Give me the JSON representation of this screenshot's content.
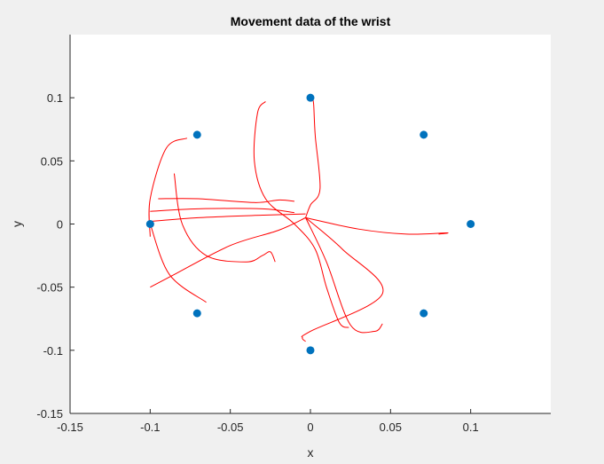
{
  "chart_data": {
    "type": "scatter",
    "title": "Movement data of the wrist",
    "xlabel": "x",
    "ylabel": "y",
    "xlim": [
      -0.15,
      0.15
    ],
    "ylim": [
      -0.15,
      0.15
    ],
    "xticks": [
      -0.15,
      -0.1,
      -0.05,
      0,
      0.05,
      0.1
    ],
    "yticks": [
      -0.15,
      -0.1,
      -0.05,
      0,
      0.05,
      0.1
    ],
    "xtick_labels": [
      "-0.15",
      "-0.1",
      "-0.05",
      "0",
      "0.05",
      "0.1"
    ],
    "ytick_labels": [
      "-0.15",
      "-0.1",
      "-0.05",
      "0",
      "0.05",
      "0.1"
    ],
    "grid": false,
    "legend": "none",
    "colors": {
      "targets": "#0072BD",
      "trajectory": "#FF0000",
      "axes_background": "#FFFFFF",
      "figure_background": "#F0F0F0",
      "axis": "#262626"
    },
    "series": [
      {
        "kind": "scatter",
        "points": [
          [
            0,
            0.1
          ],
          [
            0.0707,
            0.0707
          ],
          [
            0.1,
            0
          ],
          [
            0.0707,
            -0.0707
          ],
          [
            0,
            -0.1
          ],
          [
            -0.0707,
            -0.0707
          ],
          [
            -0.1,
            0
          ],
          [
            -0.0707,
            0.0707
          ]
        ]
      },
      {
        "kind": "line",
        "paths": [
          [
            [
              -0.003,
              0.005
            ],
            [
              0.0,
              0.015
            ],
            [
              0.006,
              0.028
            ],
            [
              0.003,
              0.07
            ],
            [
              0.002,
              0.095
            ],
            [
              0.001,
              0.1
            ]
          ],
          [
            [
              -0.003,
              0.005
            ],
            [
              -0.02,
              -0.005
            ],
            [
              -0.05,
              -0.017
            ],
            [
              -0.085,
              -0.04
            ],
            [
              -0.1,
              -0.05
            ]
          ],
          [
            [
              -0.003,
              0.005
            ],
            [
              0.02,
              -0.02
            ],
            [
              0.045,
              -0.055
            ],
            [
              0.0,
              -0.085
            ],
            [
              -0.005,
              -0.09
            ],
            [
              -0.003,
              -0.093
            ]
          ],
          [
            [
              -0.003,
              0.005
            ],
            [
              0.03,
              -0.004
            ],
            [
              0.06,
              -0.008
            ],
            [
              0.085,
              -0.007
            ],
            [
              0.08,
              -0.008
            ]
          ],
          [
            [
              -0.1,
              -0.01
            ],
            [
              -0.1,
              0.02
            ],
            [
              -0.09,
              0.06
            ],
            [
              -0.077,
              0.068
            ]
          ],
          [
            [
              -0.095,
              0.02
            ],
            [
              -0.07,
              0.02
            ],
            [
              -0.035,
              0.017
            ],
            [
              -0.02,
              0.019
            ],
            [
              -0.01,
              0.018
            ]
          ],
          [
            [
              -0.1,
              0.002
            ],
            [
              -0.07,
              0.005
            ],
            [
              -0.03,
              0.007
            ],
            [
              -0.003,
              0.008
            ]
          ],
          [
            [
              -0.028,
              0.097
            ],
            [
              -0.033,
              0.088
            ],
            [
              -0.035,
              0.05
            ],
            [
              -0.028,
              0.02
            ],
            [
              -0.01,
              0.0
            ],
            [
              0.003,
              -0.02
            ],
            [
              0.01,
              -0.05
            ],
            [
              0.018,
              -0.078
            ],
            [
              0.024,
              -0.082
            ]
          ],
          [
            [
              -0.003,
              0.005
            ],
            [
              0.01,
              -0.03
            ],
            [
              0.025,
              -0.08
            ],
            [
              0.04,
              -0.085
            ],
            [
              0.045,
              -0.079
            ]
          ],
          [
            [
              -0.1,
              0.0
            ],
            [
              -0.088,
              -0.04
            ],
            [
              -0.065,
              -0.062
            ]
          ],
          [
            [
              -0.085,
              0.04
            ],
            [
              -0.08,
              0.0
            ],
            [
              -0.065,
              -0.025
            ],
            [
              -0.04,
              -0.03
            ],
            [
              -0.03,
              -0.025
            ],
            [
              -0.025,
              -0.022
            ],
            [
              -0.022,
              -0.03
            ]
          ],
          [
            [
              -0.1,
              0.01
            ],
            [
              -0.07,
              0.012
            ],
            [
              -0.03,
              0.012
            ],
            [
              -0.01,
              0.009
            ]
          ]
        ]
      }
    ]
  }
}
